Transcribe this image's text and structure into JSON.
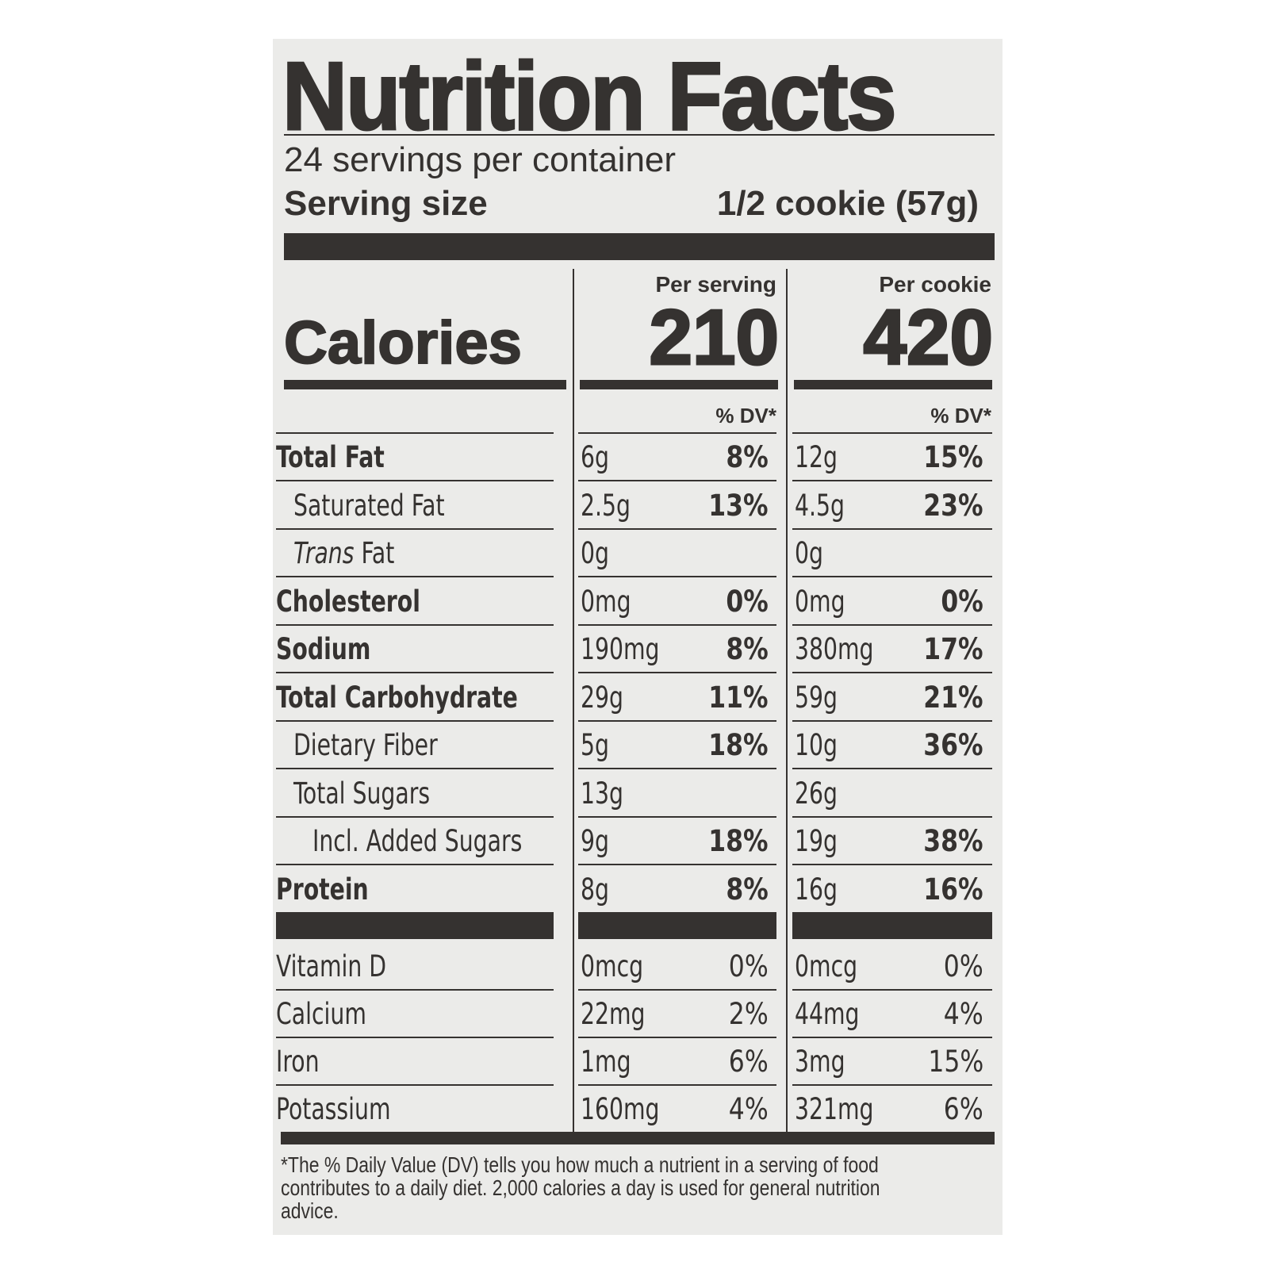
{
  "title": "Nutrition Facts",
  "servings_per_container": "24 servings per container",
  "serving_size_label": "Serving size",
  "serving_size_value": "1/2 cookie (57g)",
  "calories_label": "Calories",
  "columns": [
    {
      "header": "Per serving",
      "calories": "210",
      "dv_header": "% DV*"
    },
    {
      "header": "Per cookie",
      "calories": "420",
      "dv_header": "% DV*"
    }
  ],
  "nutrients": [
    {
      "name": "Total Fat",
      "style": "bold",
      "indent": 0,
      "serving": "6g",
      "serving_dv": "8%",
      "cookie": "12g",
      "cookie_dv": "15%"
    },
    {
      "name": "Saturated Fat",
      "style": "normal",
      "indent": 1,
      "serving": "2.5g",
      "serving_dv": "13%",
      "cookie": "4.5g",
      "cookie_dv": "23%"
    },
    {
      "name_italic": "Trans",
      "name": " Fat",
      "style": "normal",
      "indent": 1,
      "serving": "0g",
      "serving_dv": "",
      "cookie": "0g",
      "cookie_dv": ""
    },
    {
      "name": "Cholesterol",
      "style": "bold",
      "indent": 0,
      "serving": "0mg",
      "serving_dv": "0%",
      "cookie": "0mg",
      "cookie_dv": "0%"
    },
    {
      "name": "Sodium",
      "style": "bold",
      "indent": 0,
      "serving": "190mg",
      "serving_dv": "8%",
      "cookie": "380mg",
      "cookie_dv": "17%"
    },
    {
      "name": "Total Carbohydrate",
      "style": "bold",
      "indent": 0,
      "serving": "29g",
      "serving_dv": "11%",
      "cookie": "59g",
      "cookie_dv": "21%"
    },
    {
      "name": "Dietary Fiber",
      "style": "normal",
      "indent": 1,
      "serving": "5g",
      "serving_dv": "18%",
      "cookie": "10g",
      "cookie_dv": "36%"
    },
    {
      "name": "Total Sugars",
      "style": "normal",
      "indent": 1,
      "serving": "13g",
      "serving_dv": "",
      "cookie": "26g",
      "cookie_dv": ""
    },
    {
      "name": "Incl. Added Sugars",
      "style": "normal",
      "indent": 2,
      "serving": "9g",
      "serving_dv": "18%",
      "cookie": "19g",
      "cookie_dv": "38%"
    },
    {
      "name": "Protein",
      "style": "bold",
      "indent": 0,
      "serving": "8g",
      "serving_dv": "8%",
      "cookie": "16g",
      "cookie_dv": "16%"
    }
  ],
  "vitamins": [
    {
      "name": "Vitamin D",
      "serving": "0mcg",
      "serving_dv": "0%",
      "cookie": "0mcg",
      "cookie_dv": "0%"
    },
    {
      "name": "Calcium",
      "serving": "22mg",
      "serving_dv": "2%",
      "cookie": "44mg",
      "cookie_dv": "4%"
    },
    {
      "name": "Iron",
      "serving": "1mg",
      "serving_dv": "6%",
      "cookie": "3mg",
      "cookie_dv": "15%"
    },
    {
      "name": "Potassium",
      "serving": "160mg",
      "serving_dv": "4%",
      "cookie": "321mg",
      "cookie_dv": "6%"
    }
  ],
  "footnote": "*The % Daily Value (DV) tells you how much a nutrient in a serving of food contributes to a daily diet. 2,000 calories a day is used for general nutrition advice.",
  "colors": {
    "ink": "#353230",
    "panel": "#ebebe9"
  }
}
